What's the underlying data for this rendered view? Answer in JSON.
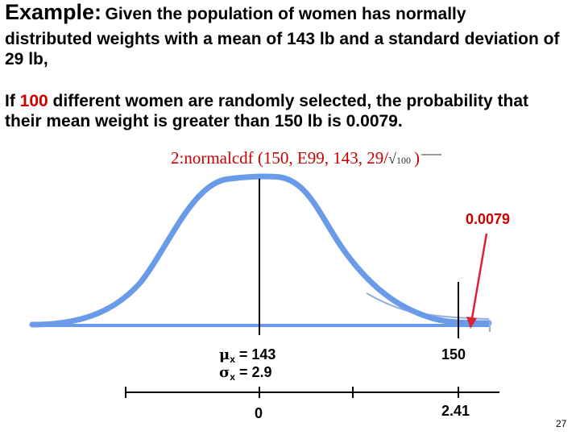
{
  "slide": {
    "title_word": "Example:",
    "title_rest": "Given the population of women has normally",
    "given_text": "distributed weights with a mean of 143 lb and a standard deviation of 29 lb,",
    "if_part1": "If ",
    "if_number": "100",
    "if_part2": " different women are randomly selected, the probability that their mean weight is greater than 150 lb is 0.0079.",
    "calc_prefix": "2:normalcdf (150, E99, 143, 29/",
    "calc_sqrt": "√",
    "calc_radicand": "100",
    "calc_suffix": ")",
    "page_number": "27"
  },
  "diagram": {
    "area_label": "0.0079",
    "mu_label": "= 143",
    "sigma_label": "= 2.9",
    "x_value_label": "150",
    "z_zero_label": "0",
    "z_value_label": "2.41",
    "mu_symbol": "μ",
    "sigma_symbol": "σ",
    "subscript": "x",
    "curve_color": "#6a9be8",
    "arrow_color": "#dd2233"
  }
}
